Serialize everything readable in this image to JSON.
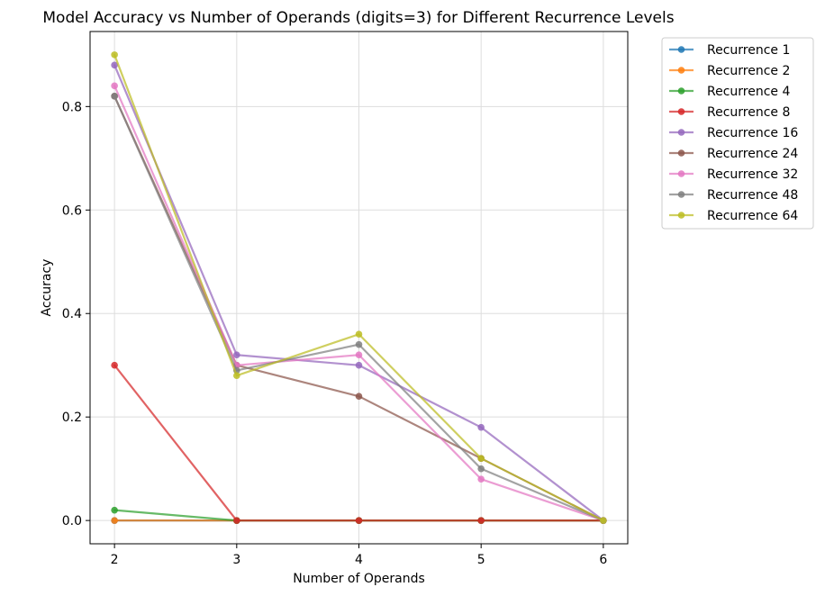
{
  "chart_data": {
    "type": "line",
    "title": "Model Accuracy vs Number of Operands (digits=3) for Different Recurrence Levels",
    "xlabel": "Number of Operands",
    "ylabel": "Accuracy",
    "x": [
      2,
      3,
      4,
      5,
      6
    ],
    "x_ticks": [
      "2",
      "3",
      "4",
      "5",
      "6"
    ],
    "xlim": [
      1.8,
      6.2
    ],
    "y_ticks": [
      "0.0",
      "0.2",
      "0.4",
      "0.6",
      "0.8"
    ],
    "y_tick_values": [
      0.0,
      0.2,
      0.4,
      0.6,
      0.8
    ],
    "ylim": [
      -0.045,
      0.945
    ],
    "grid": true,
    "legend_position": "outside-top-right",
    "series": [
      {
        "name": "Recurrence 1",
        "color": "#1f77b4",
        "values": [
          0.0,
          0.0,
          0.0,
          0.0,
          0.0
        ]
      },
      {
        "name": "Recurrence 2",
        "color": "#ff7f0e",
        "values": [
          0.0,
          0.0,
          0.0,
          0.0,
          0.0
        ]
      },
      {
        "name": "Recurrence 4",
        "color": "#2ca02c",
        "values": [
          0.02,
          0.0,
          0.0,
          0.0,
          0.0
        ]
      },
      {
        "name": "Recurrence 8",
        "color": "#d62728",
        "values": [
          0.3,
          0.0,
          0.0,
          0.0,
          0.0
        ]
      },
      {
        "name": "Recurrence 16",
        "color": "#9467bd",
        "values": [
          0.88,
          0.32,
          0.3,
          0.18,
          0.0
        ]
      },
      {
        "name": "Recurrence 24",
        "color": "#8c564b",
        "values": [
          0.82,
          0.3,
          0.24,
          0.12,
          0.0
        ]
      },
      {
        "name": "Recurrence 32",
        "color": "#e377c2",
        "values": [
          0.84,
          0.3,
          0.32,
          0.08,
          0.0
        ]
      },
      {
        "name": "Recurrence 48",
        "color": "#7f7f7f",
        "values": [
          0.82,
          0.29,
          0.34,
          0.1,
          0.0
        ]
      },
      {
        "name": "Recurrence 64",
        "color": "#bcbd22",
        "values": [
          0.9,
          0.28,
          0.36,
          0.12,
          0.0
        ]
      }
    ]
  }
}
